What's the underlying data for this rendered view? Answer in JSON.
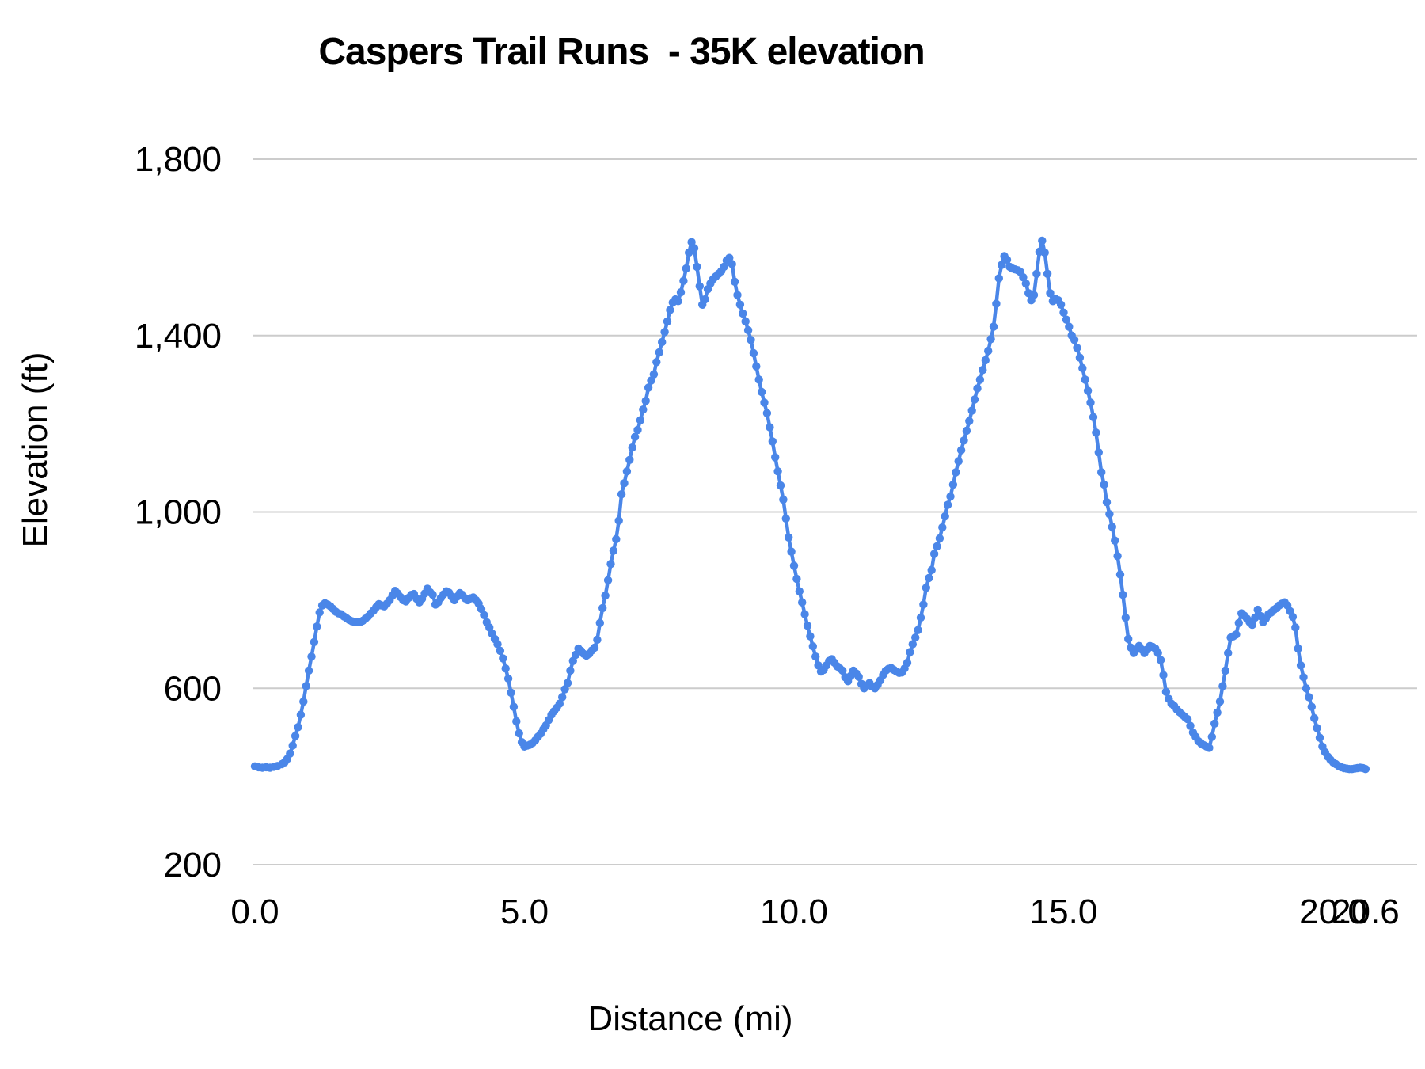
{
  "chart_data": {
    "type": "line",
    "title": "Caspers Trail Runs  - 35K elevation",
    "xlabel": "Distance (mi)",
    "ylabel": "Elevation (ft)",
    "xlim": [
      0,
      21.55
    ],
    "ylim": [
      200,
      1800
    ],
    "grid": "horizontal-only",
    "legend": "none",
    "series_name": "elevation-profile",
    "series_color": "#4a86e8",
    "gridline_color": "#cccccc",
    "text_color": "#000000",
    "x_ticks": [
      {
        "value": 0.0,
        "label": "0.0"
      },
      {
        "value": 5.0,
        "label": "5.0"
      },
      {
        "value": 10.0,
        "label": "10.0"
      },
      {
        "value": 15.0,
        "label": "15.0"
      },
      {
        "value": 20.0,
        "label": "20.0"
      },
      {
        "value": 20.6,
        "label": "20.6"
      }
    ],
    "y_ticks": [
      {
        "value": 200,
        "label": "200"
      },
      {
        "value": 600,
        "label": "600"
      },
      {
        "value": 1000,
        "label": "1,000"
      },
      {
        "value": 1400,
        "label": "1,400"
      },
      {
        "value": 1800,
        "label": "1,800"
      }
    ],
    "points_mi_ft": [
      [
        0.0,
        423
      ],
      [
        0.07,
        421
      ],
      [
        0.14,
        420
      ],
      [
        0.21,
        421
      ],
      [
        0.28,
        420
      ],
      [
        0.35,
        422
      ],
      [
        0.42,
        424
      ],
      [
        0.5,
        428
      ],
      [
        0.55,
        432
      ],
      [
        0.6,
        440
      ],
      [
        0.65,
        452
      ],
      [
        0.7,
        470
      ],
      [
        0.75,
        492
      ],
      [
        0.8,
        512
      ],
      [
        0.85,
        540
      ],
      [
        0.9,
        570
      ],
      [
        0.95,
        605
      ],
      [
        1.0,
        640
      ],
      [
        1.05,
        672
      ],
      [
        1.1,
        705
      ],
      [
        1.15,
        740
      ],
      [
        1.2,
        772
      ],
      [
        1.25,
        788
      ],
      [
        1.3,
        793
      ],
      [
        1.35,
        790
      ],
      [
        1.4,
        786
      ],
      [
        1.45,
        780
      ],
      [
        1.5,
        774
      ],
      [
        1.55,
        770
      ],
      [
        1.6,
        768
      ],
      [
        1.65,
        763
      ],
      [
        1.7,
        759
      ],
      [
        1.75,
        755
      ],
      [
        1.8,
        752
      ],
      [
        1.85,
        750
      ],
      [
        1.9,
        751
      ],
      [
        1.95,
        750
      ],
      [
        2.0,
        753
      ],
      [
        2.05,
        758
      ],
      [
        2.1,
        763
      ],
      [
        2.15,
        770
      ],
      [
        2.2,
        776
      ],
      [
        2.25,
        784
      ],
      [
        2.3,
        791
      ],
      [
        2.35,
        788
      ],
      [
        2.4,
        786
      ],
      [
        2.45,
        792
      ],
      [
        2.5,
        800
      ],
      [
        2.55,
        810
      ],
      [
        2.6,
        821
      ],
      [
        2.65,
        815
      ],
      [
        2.7,
        807
      ],
      [
        2.75,
        800
      ],
      [
        2.8,
        797
      ],
      [
        2.85,
        805
      ],
      [
        2.9,
        812
      ],
      [
        2.95,
        814
      ],
      [
        3.0,
        803
      ],
      [
        3.05,
        795
      ],
      [
        3.1,
        803
      ],
      [
        3.15,
        815
      ],
      [
        3.2,
        826
      ],
      [
        3.25,
        818
      ],
      [
        3.3,
        812
      ],
      [
        3.35,
        790
      ],
      [
        3.4,
        795
      ],
      [
        3.45,
        805
      ],
      [
        3.5,
        813
      ],
      [
        3.55,
        820
      ],
      [
        3.6,
        817
      ],
      [
        3.65,
        808
      ],
      [
        3.7,
        800
      ],
      [
        3.75,
        808
      ],
      [
        3.8,
        816
      ],
      [
        3.85,
        812
      ],
      [
        3.9,
        804
      ],
      [
        3.95,
        800
      ],
      [
        4.0,
        804
      ],
      [
        4.05,
        806
      ],
      [
        4.1,
        800
      ],
      [
        4.15,
        792
      ],
      [
        4.2,
        780
      ],
      [
        4.25,
        766
      ],
      [
        4.3,
        750
      ],
      [
        4.35,
        738
      ],
      [
        4.4,
        724
      ],
      [
        4.45,
        712
      ],
      [
        4.5,
        700
      ],
      [
        4.55,
        685
      ],
      [
        4.6,
        668
      ],
      [
        4.65,
        645
      ],
      [
        4.7,
        622
      ],
      [
        4.75,
        590
      ],
      [
        4.8,
        558
      ],
      [
        4.85,
        525
      ],
      [
        4.9,
        498
      ],
      [
        4.95,
        478
      ],
      [
        5.0,
        468
      ],
      [
        5.05,
        470
      ],
      [
        5.1,
        472
      ],
      [
        5.15,
        476
      ],
      [
        5.2,
        482
      ],
      [
        5.25,
        490
      ],
      [
        5.3,
        497
      ],
      [
        5.35,
        507
      ],
      [
        5.4,
        516
      ],
      [
        5.45,
        528
      ],
      [
        5.5,
        540
      ],
      [
        5.55,
        548
      ],
      [
        5.6,
        556
      ],
      [
        5.65,
        565
      ],
      [
        5.7,
        580
      ],
      [
        5.75,
        598
      ],
      [
        5.8,
        612
      ],
      [
        5.85,
        640
      ],
      [
        5.9,
        662
      ],
      [
        5.95,
        676
      ],
      [
        6.0,
        690
      ],
      [
        6.05,
        685
      ],
      [
        6.1,
        678
      ],
      [
        6.15,
        674
      ],
      [
        6.2,
        678
      ],
      [
        6.25,
        686
      ],
      [
        6.3,
        692
      ],
      [
        6.35,
        710
      ],
      [
        6.4,
        748
      ],
      [
        6.45,
        782
      ],
      [
        6.5,
        810
      ],
      [
        6.55,
        845
      ],
      [
        6.6,
        882
      ],
      [
        6.65,
        912
      ],
      [
        6.7,
        938
      ],
      [
        6.75,
        980
      ],
      [
        6.8,
        1040
      ],
      [
        6.85,
        1065
      ],
      [
        6.9,
        1092
      ],
      [
        6.95,
        1118
      ],
      [
        7.0,
        1146
      ],
      [
        7.05,
        1170
      ],
      [
        7.1,
        1186
      ],
      [
        7.15,
        1208
      ],
      [
        7.2,
        1232
      ],
      [
        7.25,
        1252
      ],
      [
        7.3,
        1282
      ],
      [
        7.35,
        1298
      ],
      [
        7.4,
        1312
      ],
      [
        7.45,
        1340
      ],
      [
        7.5,
        1362
      ],
      [
        7.55,
        1385
      ],
      [
        7.6,
        1408
      ],
      [
        7.65,
        1432
      ],
      [
        7.7,
        1458
      ],
      [
        7.75,
        1475
      ],
      [
        7.8,
        1482
      ],
      [
        7.85,
        1478
      ],
      [
        7.9,
        1498
      ],
      [
        7.95,
        1524
      ],
      [
        8.0,
        1552
      ],
      [
        8.05,
        1588
      ],
      [
        8.1,
        1612
      ],
      [
        8.15,
        1598
      ],
      [
        8.2,
        1556
      ],
      [
        8.25,
        1512
      ],
      [
        8.3,
        1470
      ],
      [
        8.35,
        1482
      ],
      [
        8.4,
        1505
      ],
      [
        8.45,
        1518
      ],
      [
        8.5,
        1528
      ],
      [
        8.55,
        1534
      ],
      [
        8.6,
        1540
      ],
      [
        8.65,
        1546
      ],
      [
        8.7,
        1556
      ],
      [
        8.75,
        1570
      ],
      [
        8.8,
        1576
      ],
      [
        8.85,
        1562
      ],
      [
        8.9,
        1522
      ],
      [
        8.95,
        1492
      ],
      [
        9.0,
        1470
      ],
      [
        9.05,
        1450
      ],
      [
        9.1,
        1432
      ],
      [
        9.15,
        1412
      ],
      [
        9.2,
        1390
      ],
      [
        9.25,
        1360
      ],
      [
        9.3,
        1330
      ],
      [
        9.35,
        1300
      ],
      [
        9.4,
        1272
      ],
      [
        9.45,
        1248
      ],
      [
        9.5,
        1224
      ],
      [
        9.55,
        1192
      ],
      [
        9.6,
        1160
      ],
      [
        9.65,
        1124
      ],
      [
        9.7,
        1092
      ],
      [
        9.75,
        1060
      ],
      [
        9.8,
        1028
      ],
      [
        9.85,
        985
      ],
      [
        9.9,
        942
      ],
      [
        9.95,
        910
      ],
      [
        10.0,
        878
      ],
      [
        10.05,
        848
      ],
      [
        10.1,
        820
      ],
      [
        10.15,
        795
      ],
      [
        10.2,
        768
      ],
      [
        10.25,
        742
      ],
      [
        10.3,
        718
      ],
      [
        10.35,
        695
      ],
      [
        10.4,
        672
      ],
      [
        10.45,
        652
      ],
      [
        10.5,
        638
      ],
      [
        10.55,
        642
      ],
      [
        10.6,
        652
      ],
      [
        10.65,
        662
      ],
      [
        10.7,
        666
      ],
      [
        10.75,
        658
      ],
      [
        10.8,
        650
      ],
      [
        10.85,
        645
      ],
      [
        10.9,
        640
      ],
      [
        10.95,
        625
      ],
      [
        11.0,
        616
      ],
      [
        11.05,
        628
      ],
      [
        11.1,
        640
      ],
      [
        11.15,
        634
      ],
      [
        11.2,
        626
      ],
      [
        11.25,
        610
      ],
      [
        11.3,
        600
      ],
      [
        11.35,
        606
      ],
      [
        11.4,
        612
      ],
      [
        11.45,
        604
      ],
      [
        11.5,
        600
      ],
      [
        11.55,
        608
      ],
      [
        11.6,
        618
      ],
      [
        11.65,
        630
      ],
      [
        11.7,
        640
      ],
      [
        11.75,
        644
      ],
      [
        11.8,
        646
      ],
      [
        11.85,
        642
      ],
      [
        11.9,
        638
      ],
      [
        11.95,
        635
      ],
      [
        12.0,
        636
      ],
      [
        12.05,
        645
      ],
      [
        12.1,
        658
      ],
      [
        12.15,
        682
      ],
      [
        12.2,
        700
      ],
      [
        12.25,
        715
      ],
      [
        12.3,
        732
      ],
      [
        12.35,
        760
      ],
      [
        12.4,
        790
      ],
      [
        12.45,
        828
      ],
      [
        12.5,
        850
      ],
      [
        12.55,
        868
      ],
      [
        12.6,
        905
      ],
      [
        12.65,
        922
      ],
      [
        12.7,
        940
      ],
      [
        12.75,
        965
      ],
      [
        12.8,
        990
      ],
      [
        12.85,
        1016
      ],
      [
        12.9,
        1035
      ],
      [
        12.95,
        1062
      ],
      [
        13.0,
        1090
      ],
      [
        13.05,
        1115
      ],
      [
        13.1,
        1140
      ],
      [
        13.15,
        1162
      ],
      [
        13.2,
        1184
      ],
      [
        13.25,
        1206
      ],
      [
        13.3,
        1230
      ],
      [
        13.35,
        1255
      ],
      [
        13.4,
        1280
      ],
      [
        13.45,
        1300
      ],
      [
        13.5,
        1322
      ],
      [
        13.55,
        1344
      ],
      [
        13.6,
        1365
      ],
      [
        13.65,
        1392
      ],
      [
        13.7,
        1420
      ],
      [
        13.75,
        1472
      ],
      [
        13.8,
        1530
      ],
      [
        13.85,
        1560
      ],
      [
        13.9,
        1580
      ],
      [
        13.95,
        1572
      ],
      [
        14.0,
        1556
      ],
      [
        14.05,
        1552
      ],
      [
        14.1,
        1550
      ],
      [
        14.15,
        1548
      ],
      [
        14.2,
        1544
      ],
      [
        14.25,
        1532
      ],
      [
        14.3,
        1518
      ],
      [
        14.35,
        1496
      ],
      [
        14.4,
        1480
      ],
      [
        14.45,
        1492
      ],
      [
        14.5,
        1540
      ],
      [
        14.55,
        1590
      ],
      [
        14.6,
        1615
      ],
      [
        14.65,
        1588
      ],
      [
        14.7,
        1540
      ],
      [
        14.75,
        1496
      ],
      [
        14.8,
        1478
      ],
      [
        14.85,
        1483
      ],
      [
        14.9,
        1480
      ],
      [
        14.95,
        1470
      ],
      [
        15.0,
        1452
      ],
      [
        15.05,
        1436
      ],
      [
        15.1,
        1420
      ],
      [
        15.15,
        1400
      ],
      [
        15.2,
        1390
      ],
      [
        15.25,
        1372
      ],
      [
        15.3,
        1350
      ],
      [
        15.35,
        1326
      ],
      [
        15.4,
        1300
      ],
      [
        15.45,
        1275
      ],
      [
        15.5,
        1248
      ],
      [
        15.55,
        1215
      ],
      [
        15.6,
        1180
      ],
      [
        15.65,
        1135
      ],
      [
        15.7,
        1090
      ],
      [
        15.75,
        1062
      ],
      [
        15.8,
        1022
      ],
      [
        15.85,
        995
      ],
      [
        15.9,
        966
      ],
      [
        15.95,
        935
      ],
      [
        16.0,
        900
      ],
      [
        16.05,
        858
      ],
      [
        16.1,
        812
      ],
      [
        16.15,
        760
      ],
      [
        16.2,
        712
      ],
      [
        16.25,
        692
      ],
      [
        16.3,
        680
      ],
      [
        16.35,
        688
      ],
      [
        16.4,
        696
      ],
      [
        16.45,
        688
      ],
      [
        16.5,
        680
      ],
      [
        16.55,
        688
      ],
      [
        16.6,
        696
      ],
      [
        16.65,
        694
      ],
      [
        16.7,
        690
      ],
      [
        16.75,
        680
      ],
      [
        16.8,
        664
      ],
      [
        16.85,
        630
      ],
      [
        16.9,
        592
      ],
      [
        16.95,
        576
      ],
      [
        17.0,
        565
      ],
      [
        17.05,
        560
      ],
      [
        17.1,
        552
      ],
      [
        17.15,
        546
      ],
      [
        17.2,
        540
      ],
      [
        17.25,
        535
      ],
      [
        17.3,
        530
      ],
      [
        17.35,
        515
      ],
      [
        17.4,
        500
      ],
      [
        17.45,
        490
      ],
      [
        17.5,
        480
      ],
      [
        17.55,
        475
      ],
      [
        17.6,
        471
      ],
      [
        17.65,
        468
      ],
      [
        17.7,
        465
      ],
      [
        17.75,
        490
      ],
      [
        17.8,
        520
      ],
      [
        17.85,
        545
      ],
      [
        17.9,
        570
      ],
      [
        17.95,
        605
      ],
      [
        18.0,
        640
      ],
      [
        18.05,
        680
      ],
      [
        18.1,
        715
      ],
      [
        18.15,
        718
      ],
      [
        18.2,
        722
      ],
      [
        18.25,
        748
      ],
      [
        18.3,
        770
      ],
      [
        18.35,
        765
      ],
      [
        18.4,
        758
      ],
      [
        18.45,
        750
      ],
      [
        18.5,
        744
      ],
      [
        18.55,
        760
      ],
      [
        18.6,
        778
      ],
      [
        18.65,
        764
      ],
      [
        18.7,
        750
      ],
      [
        18.75,
        758
      ],
      [
        18.8,
        768
      ],
      [
        18.85,
        772
      ],
      [
        18.9,
        778
      ],
      [
        18.95,
        782
      ],
      [
        19.0,
        788
      ],
      [
        19.05,
        792
      ],
      [
        19.1,
        795
      ],
      [
        19.15,
        788
      ],
      [
        19.2,
        775
      ],
      [
        19.25,
        762
      ],
      [
        19.3,
        738
      ],
      [
        19.35,
        690
      ],
      [
        19.4,
        652
      ],
      [
        19.45,
        625
      ],
      [
        19.5,
        600
      ],
      [
        19.55,
        580
      ],
      [
        19.6,
        558
      ],
      [
        19.65,
        532
      ],
      [
        19.7,
        510
      ],
      [
        19.75,
        488
      ],
      [
        19.8,
        468
      ],
      [
        19.85,
        455
      ],
      [
        19.9,
        445
      ],
      [
        19.95,
        438
      ],
      [
        20.0,
        432
      ],
      [
        20.05,
        428
      ],
      [
        20.1,
        424
      ],
      [
        20.15,
        421
      ],
      [
        20.2,
        419
      ],
      [
        20.25,
        418
      ],
      [
        20.3,
        417
      ],
      [
        20.35,
        417
      ],
      [
        20.4,
        418
      ],
      [
        20.45,
        419
      ],
      [
        20.5,
        420
      ],
      [
        20.55,
        419
      ],
      [
        20.6,
        417
      ]
    ]
  }
}
